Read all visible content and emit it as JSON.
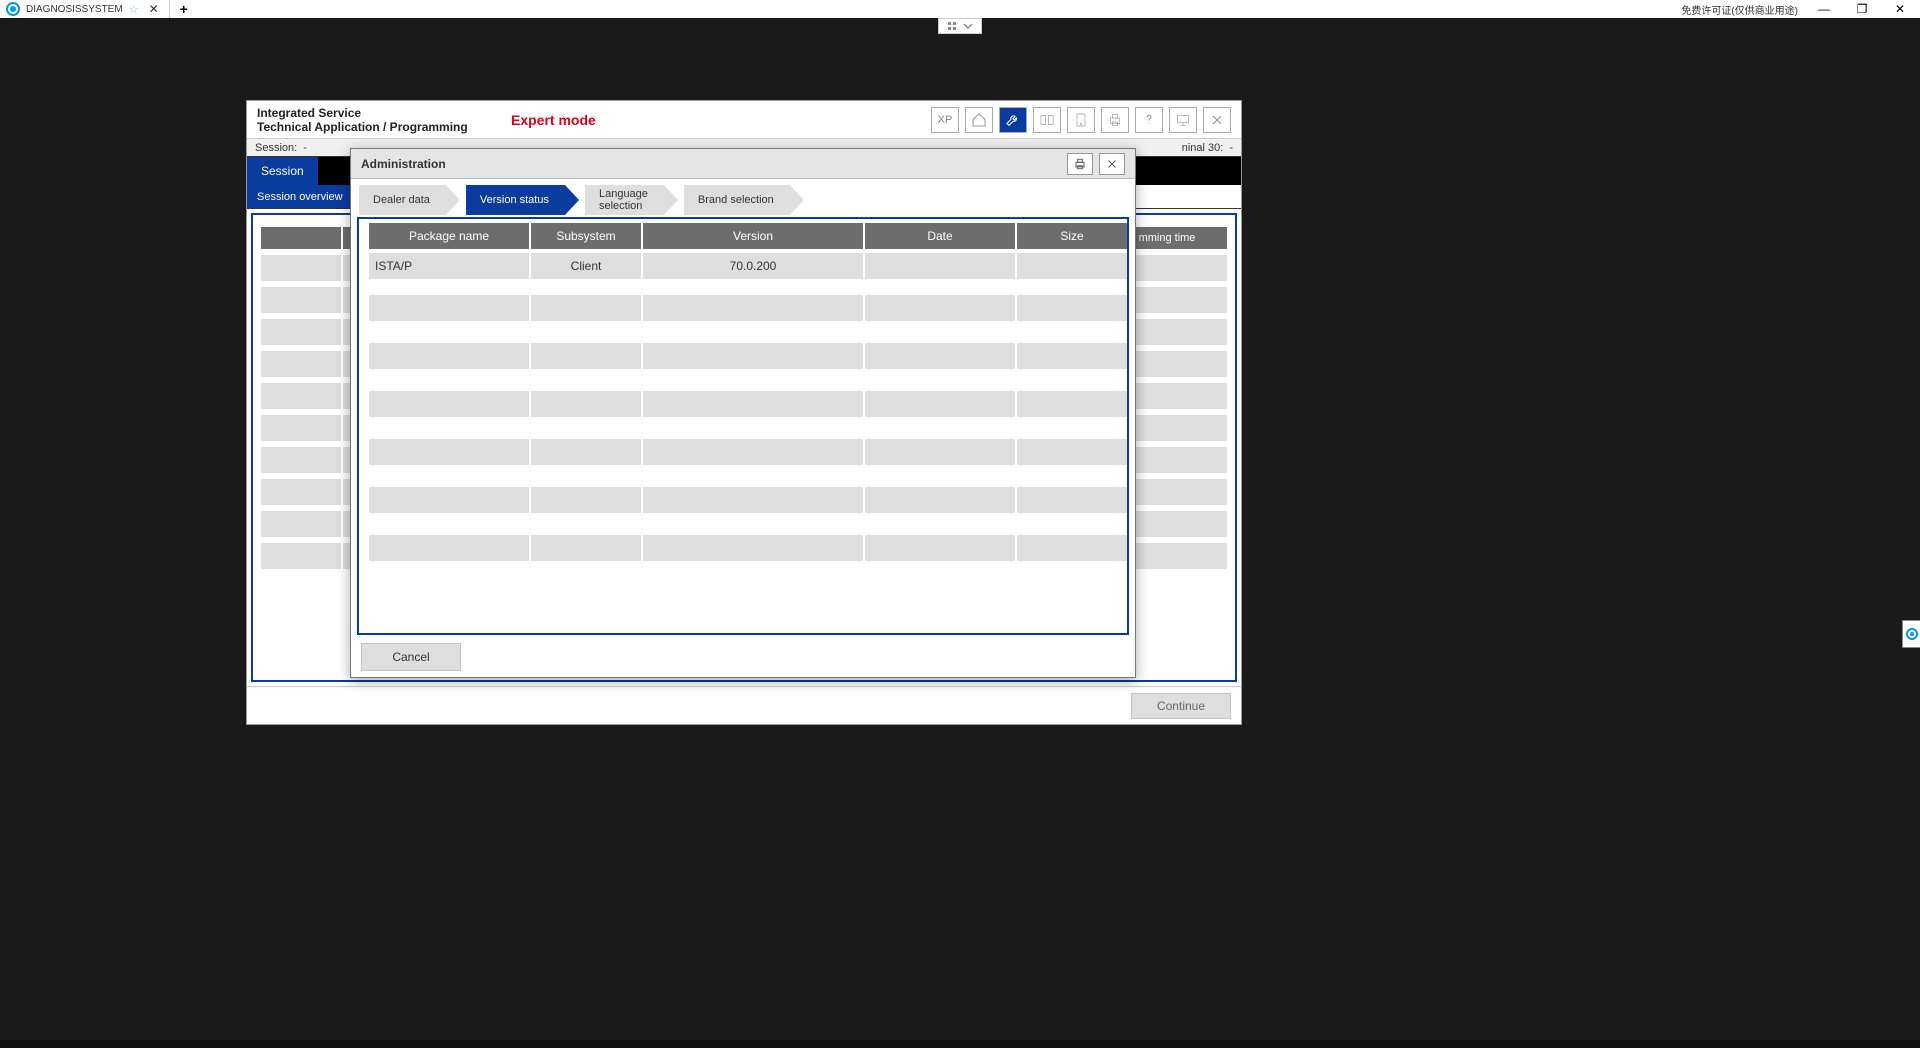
{
  "teamviewer": {
    "tab_title": "DIAGNOSISSYSTEM",
    "license_text": "免费许可证(仅供商业用途)"
  },
  "app": {
    "title_line1": "Integrated Service",
    "title_line2": "Technical Application / Programming",
    "mode": "Expert mode",
    "xp_label": "XP",
    "status": {
      "session_label": "Session:",
      "session_val": "-",
      "terminal30_label": "ninal 30:",
      "terminal30_val": "-"
    },
    "nav_tab": "Session",
    "sub_tab": "Session overview",
    "bg_header_right": "mming time",
    "continue_label": "Continue"
  },
  "modal": {
    "title": "Administration",
    "tabs": {
      "dealer": "Dealer data",
      "version": "Version status",
      "language_l1": "Language",
      "language_l2": "selection",
      "brand": "Brand selection"
    },
    "table": {
      "columns": [
        "Package name",
        "Subsystem",
        "Version",
        "Date",
        "Size"
      ],
      "col_widths": [
        "160px",
        "110px",
        "220px",
        "150px",
        "110px"
      ],
      "rows": [
        {
          "package": "ISTA/P",
          "subsystem": "Client",
          "version": "70.0.200",
          "date": "",
          "size": ""
        }
      ],
      "empty_row_count": 6
    },
    "cancel_label": "Cancel"
  },
  "type": "screenshot",
  "colors": {
    "brand_blue": "#0a3ca0",
    "grey_header": "#6d6d6d",
    "grey_row": "#dedede",
    "red": "#d9001b",
    "bg_dark": "#1a1a1a"
  }
}
